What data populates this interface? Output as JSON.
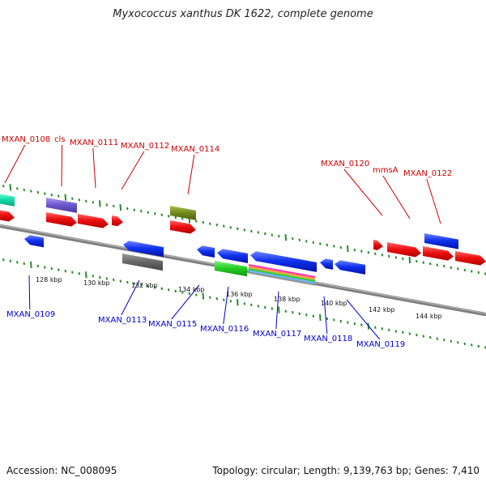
{
  "title": "Myxococcus xanthus DK 1622, complete genome",
  "footer": {
    "accession": "Accession: NC_008095",
    "topology": "Topology: circular; Length: 9,139,763 bp; Genes: 7,410"
  },
  "ticks": [
    "128 kbp",
    "130 kbp",
    "132 kbp",
    "134 kbp",
    "136 kbp",
    "138 kbp",
    "140 kbp",
    "142 kbp",
    "144 kbp"
  ],
  "upper_labels": [
    "MXAN_0108",
    "cls",
    "MXAN_0111",
    "MXAN_0112",
    "MXAN_0114",
    "MXAN_0120",
    "mmsA",
    "MXAN_0122"
  ],
  "lower_labels": [
    "MXAN_0109",
    "MXAN_0113",
    "MXAN_0115",
    "MXAN_0116",
    "MXAN_0117",
    "MXAN_0118",
    "MXAN_0119"
  ],
  "colors": {
    "forward_gene": "#ee1111",
    "reverse_gene": "#1133ee",
    "forward_label": "#cc0000",
    "reverse_label": "#0000cc",
    "backbone": "#888888",
    "dotted_ring": "#2a8a2a"
  }
}
